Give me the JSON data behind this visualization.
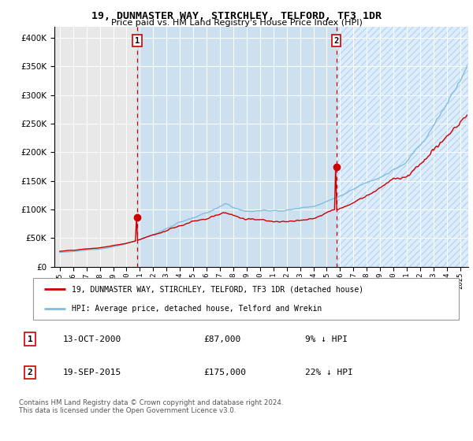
{
  "title": "19, DUNMASTER WAY, STIRCHLEY, TELFORD, TF3 1DR",
  "subtitle": "Price paid vs. HM Land Registry's House Price Index (HPI)",
  "legend_line1": "19, DUNMASTER WAY, STIRCHLEY, TELFORD, TF3 1DR (detached house)",
  "legend_line2": "HPI: Average price, detached house, Telford and Wrekin",
  "transaction1_label": "1",
  "transaction1_date": "13-OCT-2000",
  "transaction1_price": 87000,
  "transaction1_pct": "9% ↓ HPI",
  "transaction2_label": "2",
  "transaction2_date": "19-SEP-2015",
  "transaction2_price": 175000,
  "transaction2_pct": "22% ↓ HPI",
  "footer": "Contains HM Land Registry data © Crown copyright and database right 2024.\nThis data is licensed under the Open Government Licence v3.0.",
  "hpi_color": "#7fbfdf",
  "price_color": "#cc0000",
  "plot_bg_color": "#e8e8e8",
  "bg_shaded_color": "#cde0f0",
  "vline_color": "#cc0000",
  "marker_color": "#cc0000",
  "ylim": [
    0,
    420000
  ],
  "yticks": [
    0,
    50000,
    100000,
    150000,
    200000,
    250000,
    300000,
    350000,
    400000
  ],
  "start_year": 1995,
  "end_year": 2025,
  "transaction1_year": 2000.79,
  "transaction2_year": 2015.72
}
